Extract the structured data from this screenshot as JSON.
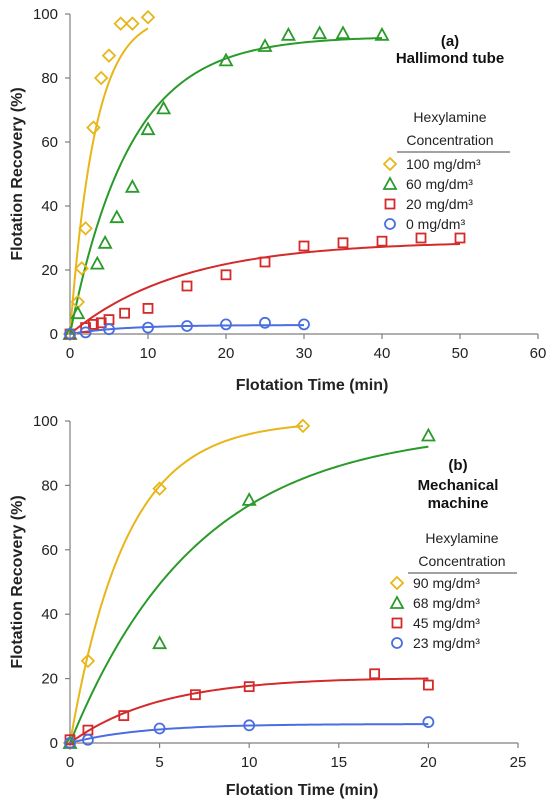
{
  "chart_data": [
    {
      "type": "scatter",
      "title": "",
      "xlabel": "Flotation Time (min)",
      "ylabel": "Flotation Recovery (%)",
      "xlim": [
        0,
        60
      ],
      "ylim": [
        0,
        100
      ],
      "xticks": [
        "0",
        "10",
        "20",
        "30",
        "40",
        "50",
        "60"
      ],
      "yticks": [
        "0",
        "20",
        "40",
        "60",
        "80",
        "100"
      ],
      "annotation": [
        "(a)",
        "Hallimond  tube"
      ],
      "legend_title": [
        "Hexylamine",
        "Concentration"
      ],
      "legend_placement": "right",
      "grid": false,
      "series": [
        {
          "name": "100 mg/dm³",
          "marker": "diamond",
          "color": "#e8b618",
          "points": [
            [
              0,
              0
            ],
            [
              1,
              10
            ],
            [
              1.5,
              20.5
            ],
            [
              2,
              33
            ],
            [
              3,
              64.5
            ],
            [
              4,
              80
            ],
            [
              5,
              87
            ],
            [
              6.5,
              97
            ],
            [
              8,
              97
            ],
            [
              10,
              99
            ]
          ],
          "fit": {
            "a": 100,
            "k": 0.31
          }
        },
        {
          "name": "60 mg/dm³",
          "marker": "triangle",
          "color": "#2a9a2a",
          "points": [
            [
              0,
              0
            ],
            [
              1,
              6.5
            ],
            [
              3.5,
              22
            ],
            [
              4.5,
              28.5
            ],
            [
              6,
              36.5
            ],
            [
              8,
              46
            ],
            [
              10,
              64
            ],
            [
              12,
              70.5
            ],
            [
              20,
              85.5
            ],
            [
              25,
              90
            ],
            [
              28,
              93.5
            ],
            [
              32,
              94
            ],
            [
              35,
              94
            ],
            [
              40,
              93.5
            ]
          ],
          "fit": {
            "a": 93,
            "k": 0.13
          }
        },
        {
          "name": "20 mg/dm³",
          "marker": "square",
          "color": "#d42a2a",
          "points": [
            [
              0,
              0
            ],
            [
              2,
              2
            ],
            [
              3,
              3
            ],
            [
              4,
              3.5
            ],
            [
              5,
              4.5
            ],
            [
              7,
              6.5
            ],
            [
              10,
              8
            ],
            [
              15,
              15
            ],
            [
              20,
              18.5
            ],
            [
              25,
              22.5
            ],
            [
              30,
              27.5
            ],
            [
              35,
              28.5
            ],
            [
              40,
              29
            ],
            [
              45,
              30
            ],
            [
              50,
              30
            ]
          ],
          "fit": {
            "a": 29,
            "k": 0.07
          }
        },
        {
          "name": "0 mg/dm³",
          "marker": "circle",
          "color": "#4a6ee0",
          "points": [
            [
              0,
              0
            ],
            [
              2,
              0.5
            ],
            [
              5,
              1.5
            ],
            [
              10,
              2
            ],
            [
              15,
              2.5
            ],
            [
              20,
              3
            ],
            [
              25,
              3.5
            ],
            [
              30,
              3
            ]
          ],
          "fit": {
            "a": 2.8,
            "k": 0.15
          }
        }
      ]
    },
    {
      "type": "scatter",
      "title": "",
      "xlabel": "Flotation Time (min)",
      "ylabel": "Flotation Recovery (%)",
      "xlim": [
        0,
        25
      ],
      "ylim": [
        0,
        100
      ],
      "xticks": [
        "0",
        "5",
        "10",
        "15",
        "20",
        "25"
      ],
      "yticks": [
        "0",
        "20",
        "40",
        "60",
        "80",
        "100"
      ],
      "annotation": [
        "(b)",
        "Mechanical",
        "machine"
      ],
      "legend_title": [
        "Hexylamine",
        "Concentration"
      ],
      "legend_placement": "right",
      "grid": false,
      "series": [
        {
          "name": "90 mg/dm³",
          "marker": "diamond",
          "color": "#e8b618",
          "points": [
            [
              0,
              0
            ],
            [
              1,
              25.5
            ],
            [
              5,
              79
            ],
            [
              13,
              98.5
            ]
          ],
          "fit": {
            "a": 100,
            "k": 0.32,
            "xmax": 13
          }
        },
        {
          "name": "68 mg/dm³",
          "marker": "triangle",
          "color": "#2a9a2a",
          "points": [
            [
              0,
              0
            ],
            [
              5,
              31
            ],
            [
              10,
              75.5
            ],
            [
              20,
              95.5
            ]
          ],
          "fit": {
            "a": 98,
            "k": 0.14,
            "xmax": 20
          }
        },
        {
          "name": "45 mg/dm³",
          "marker": "square",
          "color": "#d42a2a",
          "points": [
            [
              0,
              1
            ],
            [
              1,
              4
            ],
            [
              3,
              8.5
            ],
            [
              7,
              15
            ],
            [
              10,
              17.5
            ],
            [
              17,
              21.5
            ],
            [
              20,
              18
            ]
          ],
          "fit": {
            "a": 20.5,
            "k": 0.2,
            "xmax": 20,
            "droop": 0.02
          }
        },
        {
          "name": "23 mg/dm³",
          "marker": "circle",
          "color": "#4a6ee0",
          "points": [
            [
              0,
              0
            ],
            [
              1,
              1
            ],
            [
              5,
              4.5
            ],
            [
              10,
              5.5
            ],
            [
              20,
              6.5
            ]
          ],
          "fit": {
            "a": 5.9,
            "k": 0.25,
            "xmax": 20
          }
        }
      ]
    }
  ]
}
